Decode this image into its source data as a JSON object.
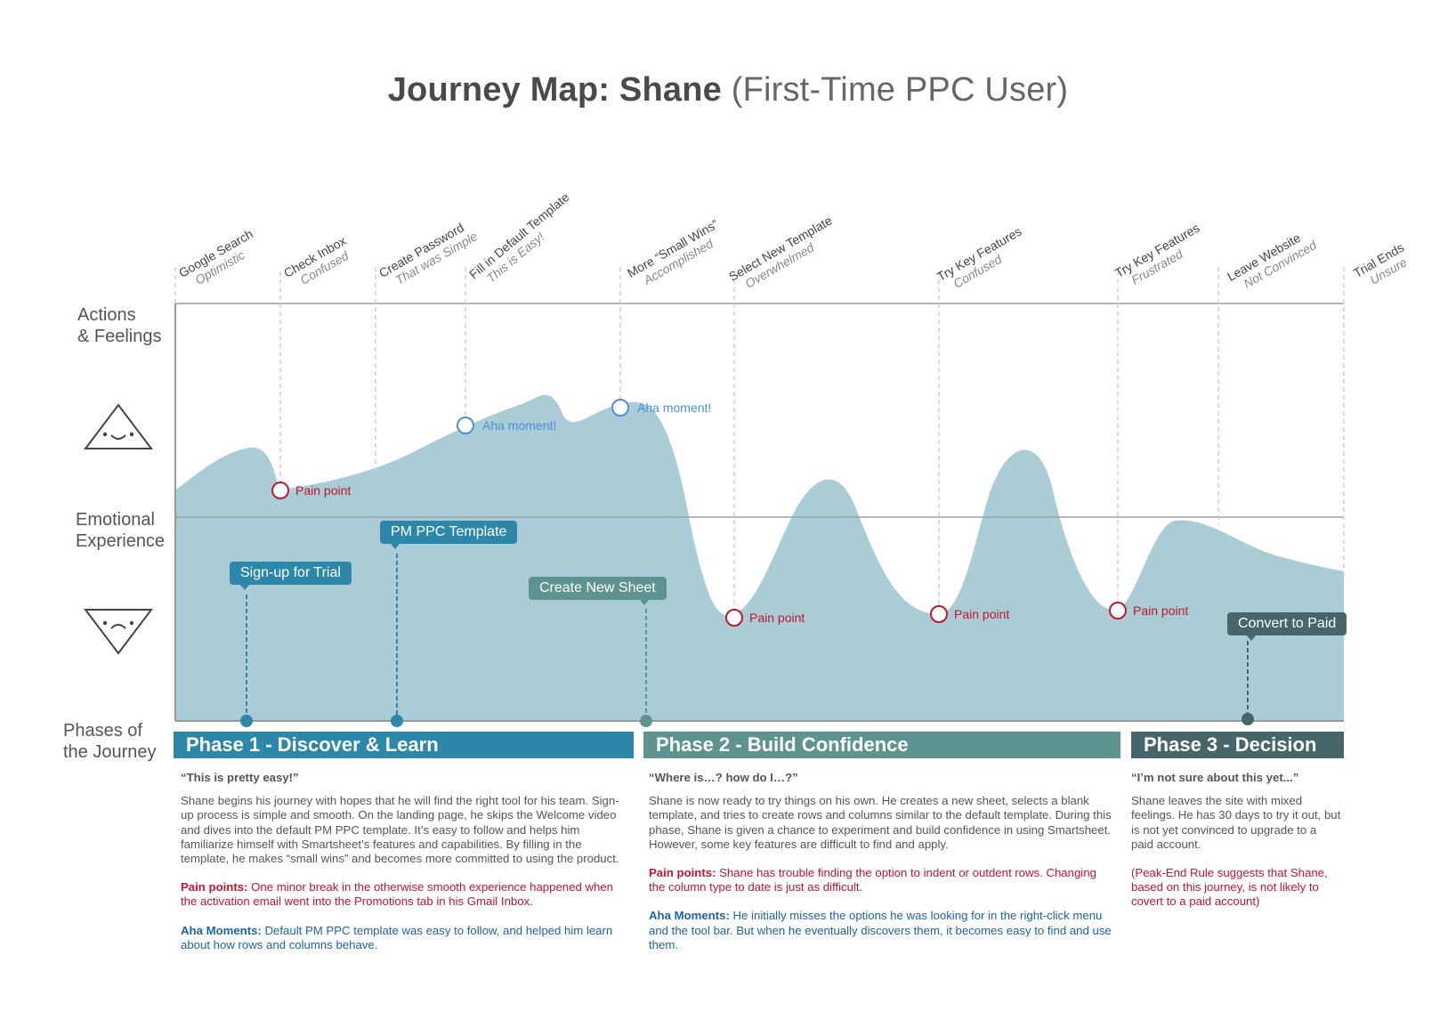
{
  "title": {
    "bold": "Journey Map: Shane",
    "light": "(First-Time PPC User)"
  },
  "row_labels": {
    "actions": [
      "Actions",
      "& Feelings"
    ],
    "emotional": [
      "Emotional",
      "Experience"
    ],
    "phases": [
      "Phases of",
      "the Journey"
    ]
  },
  "steps": [
    {
      "action": "Google Search",
      "feeling": "Optimistic"
    },
    {
      "action": "Check Inbox",
      "feeling": "Confused"
    },
    {
      "action": "Create Password",
      "feeling": "That was Simple"
    },
    {
      "action": "Fill in Default Template",
      "feeling": "This is Easy!"
    },
    {
      "action": "More “Small Wins”",
      "feeling": "Accomplished"
    },
    {
      "action": "Select New Template",
      "feeling": "Overwhelmed"
    },
    {
      "action": "Try Key Features",
      "feeling": "Confused"
    },
    {
      "action": "Try Key Features",
      "feeling": "Frustrated"
    },
    {
      "action": "Leave Website",
      "feeling": "Not Convinced"
    },
    {
      "action": "Trial Ends",
      "feeling": "Unsure"
    }
  ],
  "markers": {
    "pain": "Pain point",
    "aha": "Aha moment!"
  },
  "callouts": {
    "signup": "Sign-up for Trial",
    "template": "PM PPC Template",
    "newsheet": "Create New Sheet",
    "convert": "Convert to Paid"
  },
  "phases": [
    {
      "title": "Phase 1 -  Discover & Learn",
      "quote": "“This is pretty easy!”",
      "body": "Shane begins his journey with hopes that he will find the right tool for his team. Sign-up process is simple and smooth. On the landing page, he skips the Welcome video and dives into the default PM PPC template. It’s easy to follow and helps him familiarize himself with Smartsheet’s features and capabilities. By filling in the template, he makes “small wins” and becomes more committed to using the product.",
      "pain_label": "Pain points:",
      "pain_text": "One minor break in the otherwise smooth experience happened when the activation email went into the Promotions tab in his Gmail Inbox.",
      "aha_label": "Aha Moments:",
      "aha_text": "Default PM PPC template was easy to follow, and helped him learn about how rows and columns behave."
    },
    {
      "title": "Phase 2 - Build Confidence",
      "quote": "“Where is…? how do I…?”",
      "body": "Shane is now ready to try things on his own. He creates a new sheet, selects a blank template, and tries to create rows and columns similar to the default template. During this phase, Shane is given a chance to experiment and build confidence in using Smartsheet. However, some key features are difficult to find and apply.",
      "pain_label": "Pain points:",
      "pain_text": "Shane has trouble finding the option to indent or outdent rows. Changing the column type to date is just as difficult.",
      "aha_label": "Aha Moments:",
      "aha_text": "He initially misses the options he was looking for in the right-click menu and the tool bar. But when he eventually discovers them, it becomes easy to find and use them."
    },
    {
      "title": "Phase 3 - Decision",
      "quote": "“I’m not sure about this yet...”",
      "body": "Shane leaves the site with mixed feelings. He has 30 days to try it out, but is not yet convinced to upgrade to a paid account.",
      "note": "(Peak-End Rule suggests that Shane, based on this journey, is not likely to covert to a paid account)"
    }
  ],
  "colors": {
    "area": "#a9ccd7",
    "phase1": "#2d87a8",
    "phase2": "#5d9490",
    "phase3": "#46666a",
    "pain": "#c0172c",
    "aha": "#4a90d9"
  }
}
